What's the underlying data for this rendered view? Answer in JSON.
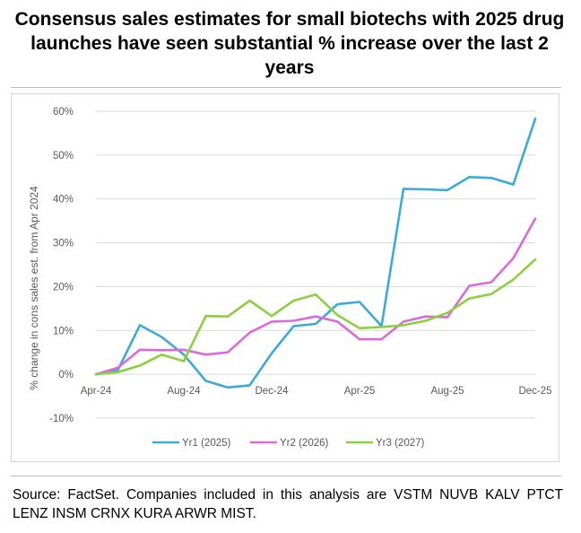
{
  "title": "Consensus sales estimates for small biotechs with 2025 drug launches have seen substantial % increase over the last 2 years",
  "source": "Source: FactSet. Companies included in this analysis are VSTM NUVB KALV PTCT LENZ INSM CRNX KURA ARWR MIST.",
  "chart_data": {
    "type": "line",
    "title": "",
    "xlabel": "",
    "ylabel": "% change in cons sales est. from Apr 2024",
    "x": [
      "Apr-24",
      "May-24",
      "Jun-24",
      "Jul-24",
      "Aug-24",
      "Sep-24",
      "Oct-24",
      "Nov-24",
      "Dec-24",
      "Jan-25",
      "Feb-25",
      "Mar-25",
      "Apr-25",
      "May-25",
      "Jun-25",
      "Jul-25",
      "Aug-25",
      "Sep-25",
      "Oct-25",
      "Nov-25",
      "Dec-25"
    ],
    "x_tick_labels": [
      "Apr-24",
      "Aug-24",
      "Dec-24",
      "Apr-25",
      "Aug-25",
      "Dec-25"
    ],
    "ylim": [
      -10,
      60
    ],
    "y_ticks": [
      -10,
      0,
      10,
      20,
      30,
      40,
      50,
      60
    ],
    "y_tick_labels": [
      "-10%",
      "0%",
      "10%",
      "20%",
      "30%",
      "40%",
      "50%",
      "60%"
    ],
    "grid": true,
    "legend_position": "bottom",
    "series": [
      {
        "name": "Yr1 (2025)",
        "color": "#3AAADD",
        "values": [
          0,
          1,
          11.2,
          8.5,
          4.5,
          -1.5,
          -3,
          -2.5,
          4.8,
          11,
          11.5,
          16,
          16.5,
          11,
          42.3,
          42.2,
          42,
          45,
          44.8,
          43.3,
          58.3
        ]
      },
      {
        "name": "Yr2 (2026)",
        "color": "#D96BD9",
        "values": [
          0,
          1.5,
          5.6,
          5.5,
          5.6,
          4.5,
          5,
          9.5,
          12,
          12.2,
          13.2,
          12,
          8,
          8,
          12,
          13.2,
          13,
          20.2,
          21,
          26.5,
          35.5
        ]
      },
      {
        "name": "Yr3 (2027)",
        "color": "#8CCF3D",
        "values": [
          0,
          0.5,
          2,
          4.5,
          3,
          13.3,
          13.2,
          16.8,
          13.3,
          16.8,
          18.2,
          13.5,
          10.5,
          10.8,
          11.2,
          12.2,
          14,
          17.3,
          18.3,
          21.6,
          26.2
        ]
      }
    ]
  }
}
